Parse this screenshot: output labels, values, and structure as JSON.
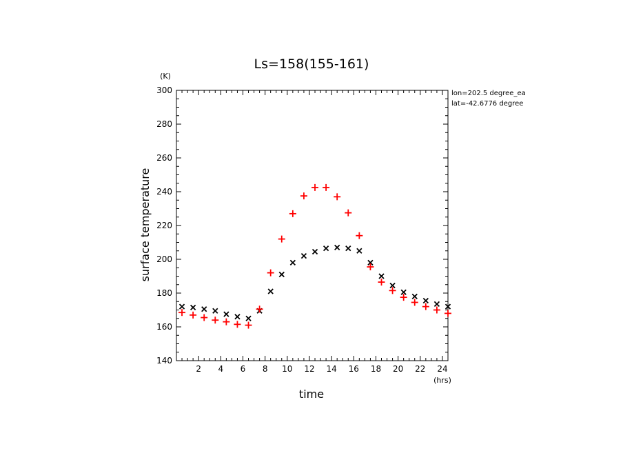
{
  "chart_data": {
    "type": "scatter",
    "title": "Ls=158(155-161)",
    "xlabel": "time",
    "x_unit": "(hrs)",
    "ylabel": "surface temperature",
    "y_unit": "(K)",
    "xlim": [
      0,
      24.5
    ],
    "ylim": [
      140,
      300
    ],
    "x_ticks": [
      2,
      4,
      6,
      8,
      10,
      12,
      14,
      16,
      18,
      20,
      22,
      24
    ],
    "x_tick_labels": [
      "2",
      "4",
      "6",
      "8",
      "10",
      "12",
      "14",
      "16",
      "18",
      "20",
      "22",
      "24"
    ],
    "y_ticks": [
      140,
      160,
      180,
      200,
      220,
      240,
      260,
      280,
      300
    ],
    "y_tick_labels": [
      "140",
      "160",
      "180",
      "200",
      "220",
      "240",
      "260",
      "280",
      "300"
    ],
    "annotations": [
      "lon=202.5 degree_ea",
      "lat=-42.6776 degree"
    ],
    "grid": false,
    "series": [
      {
        "marker": "x",
        "color": "#000000",
        "x": [
          0.5,
          1.5,
          2.5,
          3.5,
          4.5,
          5.5,
          6.5,
          7.5,
          8.5,
          9.5,
          10.5,
          11.5,
          12.5,
          13.5,
          14.5,
          15.5,
          16.5,
          17.5,
          18.5,
          19.5,
          20.5,
          21.5,
          22.5,
          23.5,
          24.5
        ],
        "y": [
          172,
          171.5,
          170.5,
          169.5,
          167.5,
          166,
          165,
          169.5,
          181,
          191,
          198,
          202,
          204.5,
          206.5,
          207,
          206.5,
          205,
          198,
          190,
          184.5,
          180.5,
          178,
          175.5,
          173.5,
          172
        ]
      },
      {
        "marker": "+",
        "color": "#ff0000",
        "x": [
          0.5,
          1.5,
          2.5,
          3.5,
          4.5,
          5.5,
          6.5,
          7.5,
          8.5,
          9.5,
          10.5,
          11.5,
          12.5,
          13.5,
          14.5,
          15.5,
          16.5,
          17.5,
          18.5,
          19.5,
          20.5,
          21.5,
          22.5,
          23.5,
          24.5
        ],
        "y": [
          168.5,
          167,
          165.5,
          164,
          163,
          161.5,
          161,
          170.5,
          192,
          212,
          227,
          237.5,
          242.5,
          242.5,
          237,
          227.5,
          214,
          195.5,
          186.5,
          181.5,
          177.5,
          174.5,
          172,
          170,
          168
        ]
      }
    ]
  }
}
